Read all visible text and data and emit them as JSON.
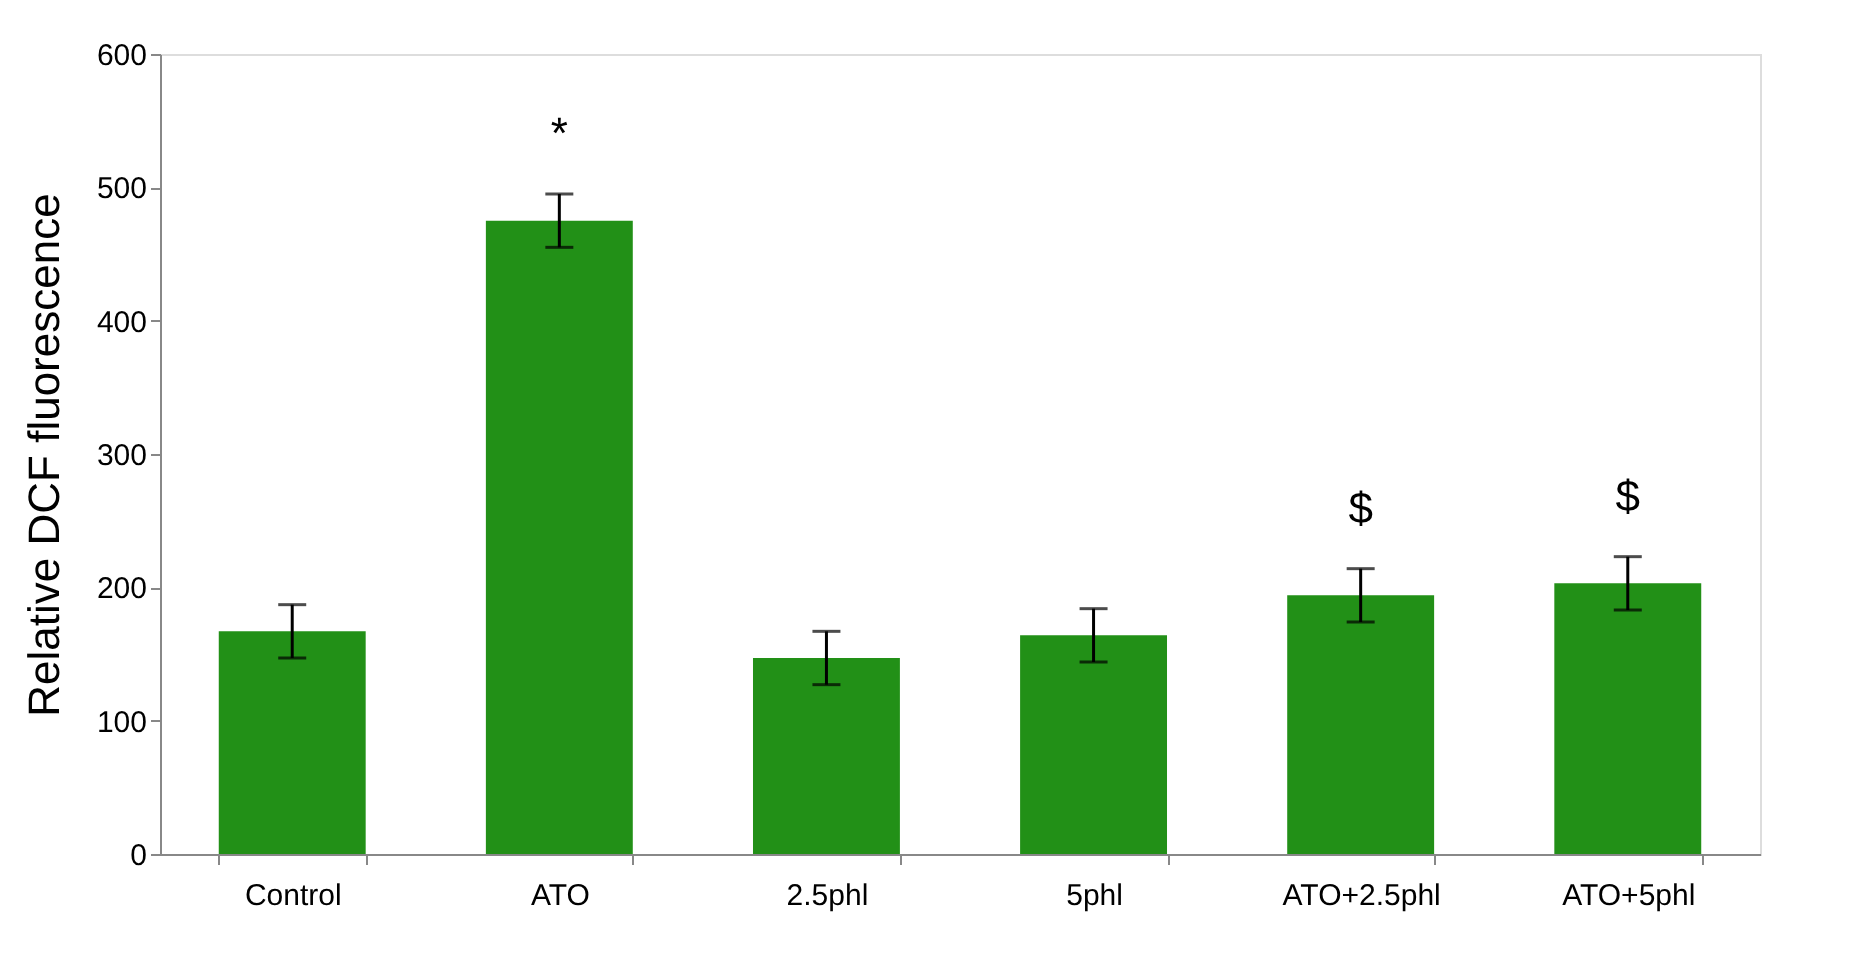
{
  "chart_data": {
    "type": "bar",
    "ylabel": "Relative DCF fluorescence",
    "categories": [
      "Control",
      "ATO",
      "2.5phl",
      "5phl",
      "ATO+2.5phl",
      "ATO+5phl"
    ],
    "values": [
      167,
      475,
      147,
      164,
      194,
      203
    ],
    "errors": [
      20,
      20,
      20,
      20,
      20,
      20
    ],
    "color": "#229017",
    "ylim": [
      0,
      600
    ],
    "yticks": [
      0,
      100,
      200,
      300,
      400,
      500,
      600
    ],
    "grid": false,
    "value_labels": [
      null,
      "*",
      null,
      null,
      "$",
      "$"
    ]
  }
}
